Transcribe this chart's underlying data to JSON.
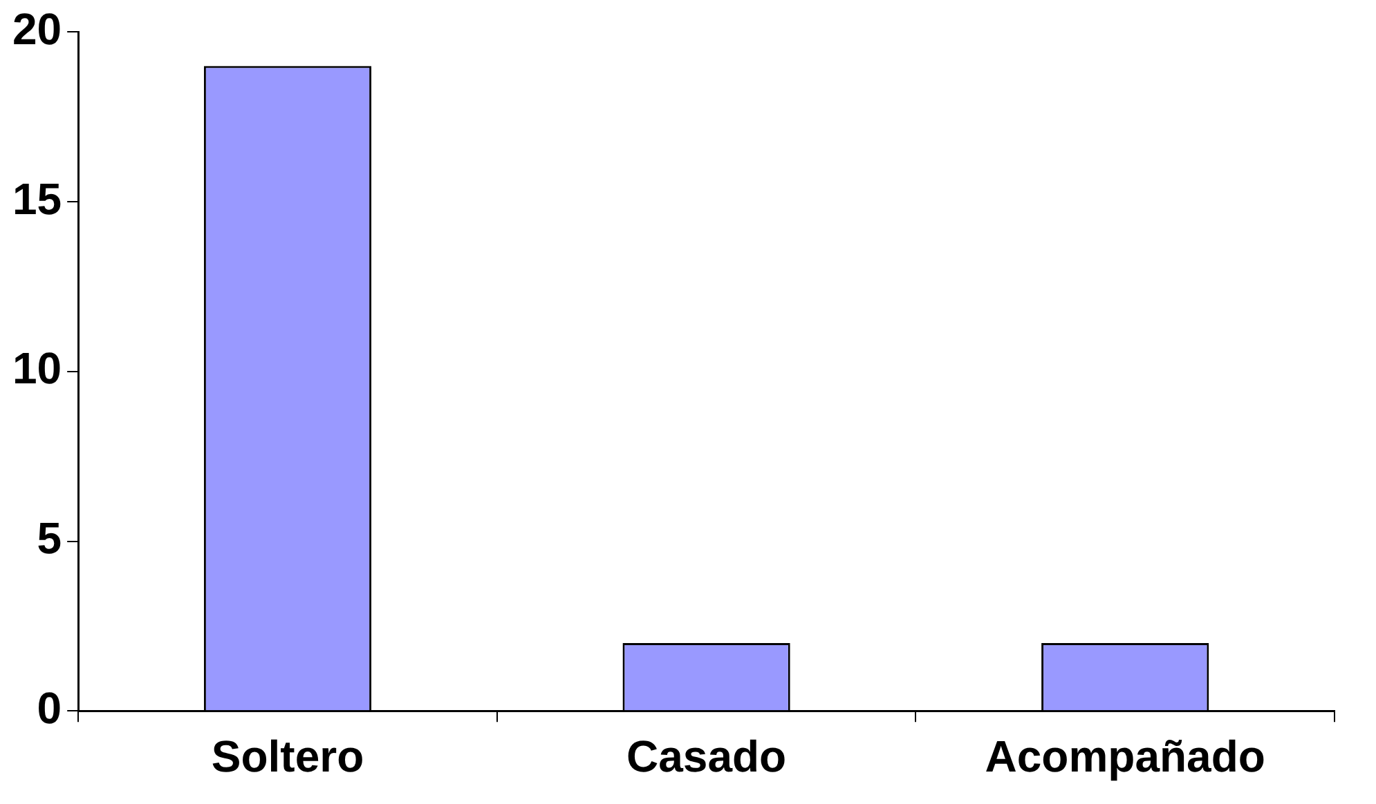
{
  "chart_data": {
    "type": "bar",
    "categories": [
      "Soltero",
      "Casado",
      "Acompañado"
    ],
    "values": [
      19,
      2,
      2
    ],
    "color": "#9999ff",
    "ylim": [
      0,
      20
    ],
    "yticks": [
      0,
      5,
      10,
      15,
      20
    ],
    "grid": false,
    "legend": false
  }
}
